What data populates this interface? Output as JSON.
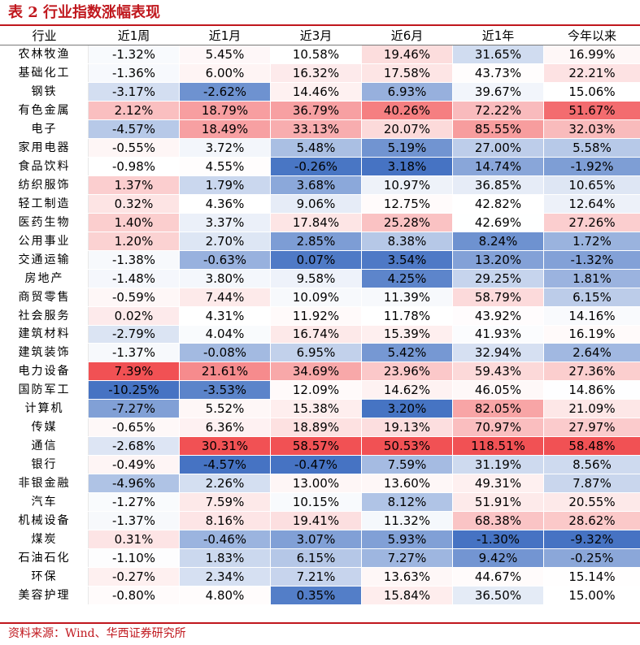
{
  "title": "表 2 行业指数涨幅表现",
  "source": "资料来源：Wind、华西证券研究所",
  "colors": {
    "accent": "#c0171d",
    "positive": "#f0484b",
    "negative": "#3c6cc0",
    "neutral": "#ffffff"
  },
  "chart_data": {
    "type": "heatmap",
    "row_header": "行业",
    "columns": [
      "近1周",
      "近1月",
      "近3月",
      "近6月",
      "近1年",
      "今年以来"
    ],
    "rows": [
      {
        "name": "农林牧渔",
        "values": [
          -1.32,
          5.45,
          10.58,
          19.46,
          31.65,
          16.99
        ]
      },
      {
        "name": "基础化工",
        "values": [
          -1.36,
          6.0,
          16.32,
          17.58,
          43.73,
          22.21
        ]
      },
      {
        "name": "钢铁",
        "values": [
          -3.17,
          -2.62,
          14.46,
          6.93,
          39.67,
          15.06
        ]
      },
      {
        "name": "有色金属",
        "values": [
          2.12,
          18.79,
          36.79,
          40.26,
          72.22,
          51.67
        ]
      },
      {
        "name": "电子",
        "values": [
          -4.57,
          18.49,
          33.13,
          20.07,
          85.55,
          32.03
        ]
      },
      {
        "name": "家用电器",
        "values": [
          -0.55,
          3.72,
          5.48,
          5.19,
          27.0,
          5.58
        ]
      },
      {
        "name": "食品饮料",
        "values": [
          -0.98,
          4.55,
          -0.26,
          3.18,
          14.74,
          -1.92
        ]
      },
      {
        "name": "纺织服饰",
        "values": [
          1.37,
          1.79,
          3.68,
          10.97,
          36.85,
          10.65
        ]
      },
      {
        "name": "轻工制造",
        "values": [
          0.32,
          4.36,
          9.06,
          12.75,
          42.82,
          12.64
        ]
      },
      {
        "name": "医药生物",
        "values": [
          1.4,
          3.37,
          17.84,
          25.28,
          42.69,
          27.26
        ]
      },
      {
        "name": "公用事业",
        "values": [
          1.2,
          2.7,
          2.85,
          8.38,
          8.24,
          1.72
        ]
      },
      {
        "name": "交通运输",
        "values": [
          -1.38,
          -0.63,
          0.07,
          3.54,
          13.2,
          -1.32
        ]
      },
      {
        "name": "房地产",
        "values": [
          -1.48,
          3.8,
          9.58,
          4.25,
          29.25,
          1.81
        ]
      },
      {
        "name": "商贸零售",
        "values": [
          -0.59,
          7.44,
          10.09,
          11.39,
          58.79,
          6.15
        ]
      },
      {
        "name": "社会服务",
        "values": [
          0.02,
          4.31,
          11.92,
          11.78,
          43.92,
          14.16
        ]
      },
      {
        "name": "建筑材料",
        "values": [
          -2.79,
          4.04,
          16.74,
          15.39,
          41.93,
          16.19
        ]
      },
      {
        "name": "建筑装饰",
        "values": [
          -1.37,
          -0.08,
          6.95,
          5.42,
          32.94,
          2.64
        ]
      },
      {
        "name": "电力设备",
        "values": [
          7.39,
          21.61,
          34.69,
          23.96,
          59.43,
          27.36
        ]
      },
      {
        "name": "国防军工",
        "values": [
          -10.25,
          -3.53,
          12.09,
          14.62,
          46.05,
          14.86
        ]
      },
      {
        "name": "计算机",
        "values": [
          -7.27,
          5.52,
          15.38,
          3.2,
          82.05,
          21.09
        ]
      },
      {
        "name": "传媒",
        "values": [
          -0.65,
          6.36,
          18.89,
          19.13,
          70.97,
          27.97
        ]
      },
      {
        "name": "通信",
        "values": [
          -2.68,
          30.31,
          58.57,
          50.53,
          118.51,
          58.48
        ]
      },
      {
        "name": "银行",
        "values": [
          -0.49,
          -4.57,
          -0.47,
          7.59,
          31.19,
          8.56
        ]
      },
      {
        "name": "非银金融",
        "values": [
          -4.96,
          2.26,
          13.0,
          13.6,
          49.31,
          7.87
        ]
      },
      {
        "name": "汽车",
        "values": [
          -1.27,
          7.59,
          10.15,
          8.12,
          51.91,
          20.55
        ]
      },
      {
        "name": "机械设备",
        "values": [
          -1.37,
          8.16,
          19.41,
          11.32,
          68.38,
          28.62
        ]
      },
      {
        "name": "煤炭",
        "values": [
          0.31,
          -0.46,
          3.07,
          5.93,
          -1.3,
          -9.32
        ]
      },
      {
        "name": "石油石化",
        "values": [
          -1.1,
          1.83,
          6.15,
          7.27,
          9.42,
          -0.25
        ]
      },
      {
        "name": "环保",
        "values": [
          -0.27,
          2.34,
          7.21,
          13.63,
          44.67,
          15.14
        ]
      },
      {
        "name": "美容护理",
        "values": [
          -0.8,
          4.8,
          0.35,
          15.84,
          36.5,
          15.0
        ]
      }
    ],
    "value_format": "percent",
    "decimals": 2
  }
}
